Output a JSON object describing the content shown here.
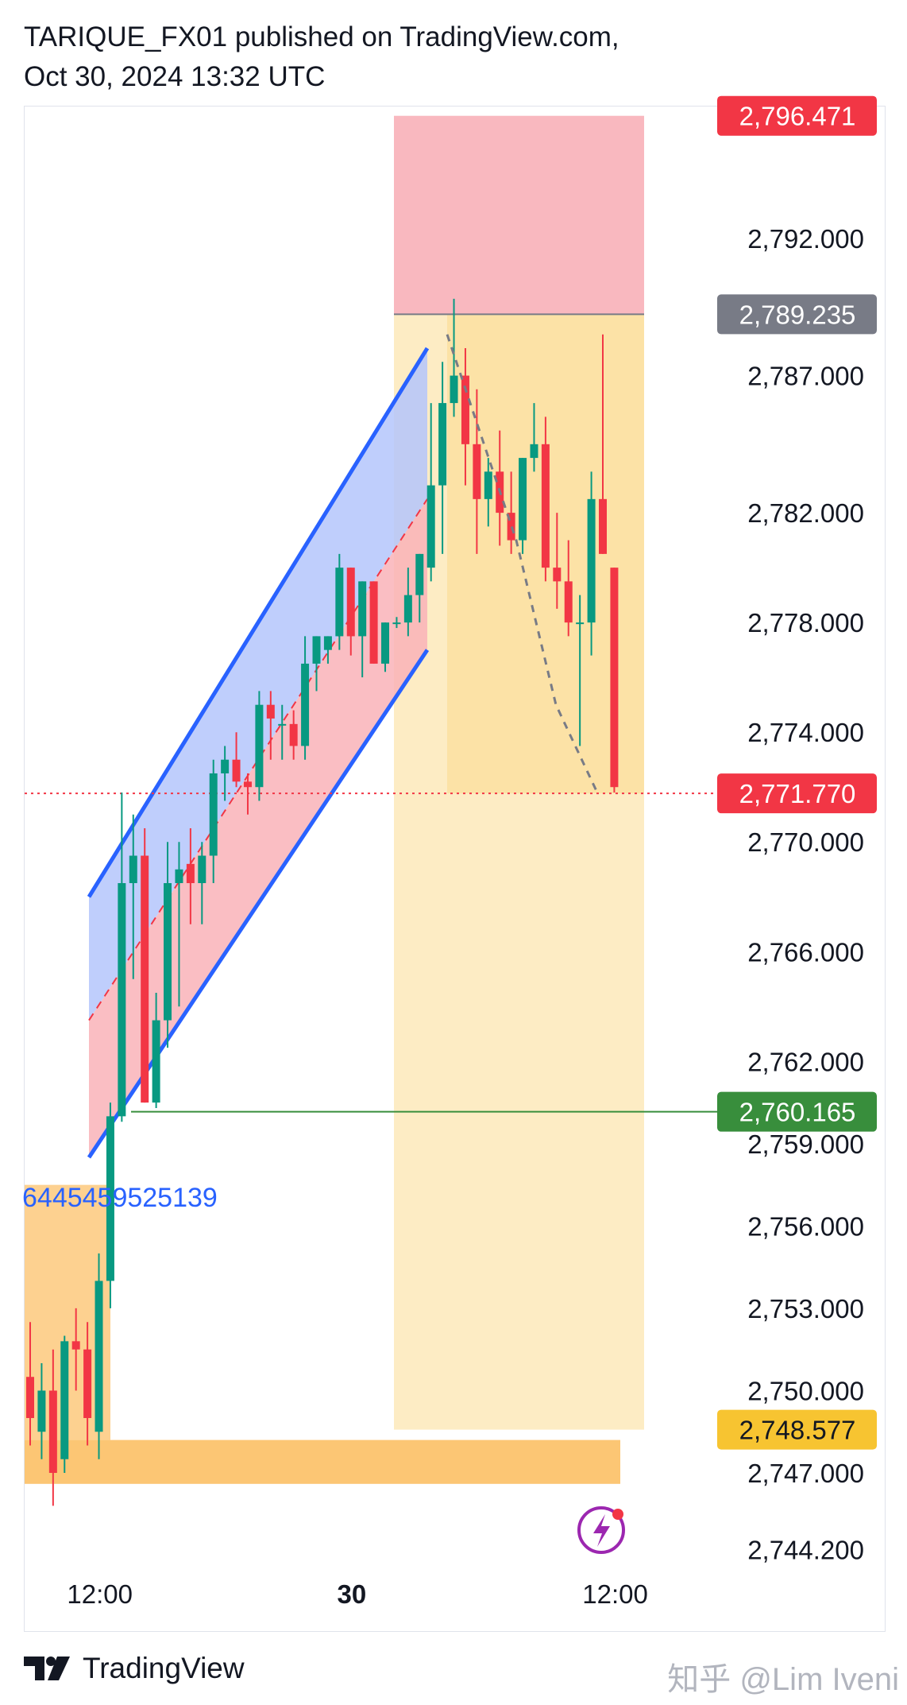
{
  "header": {
    "line1": "TARIQUE_FX01 published on TradingView.com,",
    "line2": "Oct 30, 2024 13:32 UTC"
  },
  "footer": {
    "brand": "TradingView",
    "watermark": "知乎 @Lim Iveni"
  },
  "colors": {
    "bull": "#089981",
    "bear": "#f23645",
    "channel_blue": "#2962ff",
    "channel_fill_blue": "#b4c6fc",
    "channel_fill_red": "#f9b3b8",
    "stop_zone": "#f9b8bf",
    "profit_zone": "#fdecc4",
    "profit_zone_dark": "#fce2a6",
    "orange_zone": "#fcc674",
    "green_line": "#388e3c",
    "gray_line": "#787b86"
  },
  "chart_data": {
    "type": "candlestick",
    "symbol_note": "XAUUSD-style price chart",
    "y_axis": {
      "range": [
        2744.2,
        2797.5
      ],
      "ticks": [
        "2,792.000",
        "2,787.000",
        "2,782.000",
        "2,778.000",
        "2,774.000",
        "2,770.000",
        "2,766.000",
        "2,762.000",
        "2,759.000",
        "2,756.000",
        "2,753.000",
        "2,750.000",
        "2,747.000",
        "2,744.200"
      ],
      "tick_values": [
        2792.0,
        2787.0,
        2782.0,
        2778.0,
        2774.0,
        2770.0,
        2766.0,
        2762.0,
        2759.0,
        2756.0,
        2753.0,
        2750.0,
        2747.0,
        2744.2
      ]
    },
    "x_axis": {
      "ticks": [
        "12:00",
        "30",
        "12:00"
      ],
      "tick_bars": [
        4,
        26,
        49
      ],
      "bold_tick": "30"
    },
    "price_labels": [
      {
        "text": "2,796.471",
        "value": 2796.471,
        "color": "#f23645"
      },
      {
        "text": "2,789.235",
        "value": 2789.235,
        "color": "#787b86"
      },
      {
        "text": "2,771.770",
        "value": 2771.77,
        "color": "#f23645"
      },
      {
        "text": "2,760.165",
        "value": 2760.165,
        "color": "#388e3c"
      },
      {
        "text": "2,748.577",
        "value": 2748.577,
        "color": "#f7c431"
      }
    ],
    "annotations": {
      "blue_text": "6445459525139"
    },
    "candles": [
      {
        "o": 2750.5,
        "h": 2752.5,
        "l": 2748.0,
        "c": 2749.0
      },
      {
        "o": 2748.5,
        "h": 2751.0,
        "l": 2747.5,
        "c": 2750.0
      },
      {
        "o": 2750.0,
        "h": 2751.5,
        "l": 2745.8,
        "c": 2747.0
      },
      {
        "o": 2747.5,
        "h": 2752.0,
        "l": 2747.0,
        "c": 2751.8
      },
      {
        "o": 2751.8,
        "h": 2753.0,
        "l": 2750.0,
        "c": 2751.5
      },
      {
        "o": 2751.5,
        "h": 2752.5,
        "l": 2748.0,
        "c": 2749.0
      },
      {
        "o": 2748.5,
        "h": 2755.0,
        "l": 2747.5,
        "c": 2754.0
      },
      {
        "o": 2754.0,
        "h": 2760.5,
        "l": 2753.0,
        "c": 2760.0
      },
      {
        "o": 2760.0,
        "h": 2771.8,
        "l": 2759.8,
        "c": 2768.5
      },
      {
        "o": 2768.5,
        "h": 2771.0,
        "l": 2765.0,
        "c": 2769.5
      },
      {
        "o": 2769.5,
        "h": 2770.5,
        "l": 2760.5,
        "c": 2760.5
      },
      {
        "o": 2760.5,
        "h": 2764.5,
        "l": 2760.3,
        "c": 2763.5
      },
      {
        "o": 2763.5,
        "h": 2770.0,
        "l": 2762.5,
        "c": 2768.5
      },
      {
        "o": 2768.5,
        "h": 2770.0,
        "l": 2764.0,
        "c": 2769.0
      },
      {
        "o": 2769.2,
        "h": 2770.5,
        "l": 2767.0,
        "c": 2768.5
      },
      {
        "o": 2768.5,
        "h": 2770.0,
        "l": 2767.0,
        "c": 2769.5
      },
      {
        "o": 2769.5,
        "h": 2773.0,
        "l": 2768.5,
        "c": 2772.5
      },
      {
        "o": 2772.5,
        "h": 2773.5,
        "l": 2771.5,
        "c": 2773.0
      },
      {
        "o": 2773.0,
        "h": 2774.0,
        "l": 2772.0,
        "c": 2772.2
      },
      {
        "o": 2772.2,
        "h": 2772.5,
        "l": 2771.0,
        "c": 2772.0
      },
      {
        "o": 2772.0,
        "h": 2775.5,
        "l": 2771.5,
        "c": 2775.0
      },
      {
        "o": 2775.0,
        "h": 2775.5,
        "l": 2773.0,
        "c": 2774.5
      },
      {
        "o": 2774.3,
        "h": 2775.0,
        "l": 2773.0,
        "c": 2774.3
      },
      {
        "o": 2774.3,
        "h": 2774.8,
        "l": 2773.0,
        "c": 2773.5
      },
      {
        "o": 2773.5,
        "h": 2777.5,
        "l": 2773.0,
        "c": 2776.5
      },
      {
        "o": 2776.5,
        "h": 2777.5,
        "l": 2775.5,
        "c": 2777.5
      },
      {
        "o": 2777.0,
        "h": 2777.5,
        "l": 2776.5,
        "c": 2777.5
      },
      {
        "o": 2777.5,
        "h": 2780.5,
        "l": 2777.0,
        "c": 2780.0
      },
      {
        "o": 2780.0,
        "h": 2780.0,
        "l": 2776.8,
        "c": 2777.5
      },
      {
        "o": 2777.5,
        "h": 2779.5,
        "l": 2776.0,
        "c": 2779.5
      },
      {
        "o": 2779.5,
        "h": 2779.5,
        "l": 2776.5,
        "c": 2776.5
      },
      {
        "o": 2776.5,
        "h": 2778.0,
        "l": 2776.2,
        "c": 2778.0
      },
      {
        "o": 2778.0,
        "h": 2778.2,
        "l": 2777.8,
        "c": 2778.0
      },
      {
        "o": 2778.0,
        "h": 2780.0,
        "l": 2777.5,
        "c": 2779.0
      },
      {
        "o": 2779.0,
        "h": 2780.5,
        "l": 2778.0,
        "c": 2780.5
      },
      {
        "o": 2780.0,
        "h": 2786.0,
        "l": 2779.5,
        "c": 2783.0
      },
      {
        "o": 2783.0,
        "h": 2787.5,
        "l": 2780.5,
        "c": 2786.0
      },
      {
        "o": 2786.0,
        "h": 2789.8,
        "l": 2785.5,
        "c": 2787.0
      },
      {
        "o": 2787.0,
        "h": 2788.0,
        "l": 2783.0,
        "c": 2784.5
      },
      {
        "o": 2784.5,
        "h": 2786.5,
        "l": 2780.5,
        "c": 2782.5
      },
      {
        "o": 2782.5,
        "h": 2784.0,
        "l": 2781.5,
        "c": 2783.5
      },
      {
        "o": 2783.5,
        "h": 2785.0,
        "l": 2780.8,
        "c": 2782.0
      },
      {
        "o": 2782.0,
        "h": 2783.5,
        "l": 2780.5,
        "c": 2781.0
      },
      {
        "o": 2781.0,
        "h": 2784.0,
        "l": 2780.5,
        "c": 2784.0
      },
      {
        "o": 2784.0,
        "h": 2786.0,
        "l": 2783.5,
        "c": 2784.5
      },
      {
        "o": 2784.5,
        "h": 2785.5,
        "l": 2779.5,
        "c": 2780.0
      },
      {
        "o": 2780.0,
        "h": 2782.0,
        "l": 2778.5,
        "c": 2779.5
      },
      {
        "o": 2779.5,
        "h": 2781.0,
        "l": 2777.5,
        "c": 2778.0
      },
      {
        "o": 2778.0,
        "h": 2779.0,
        "l": 2773.5,
        "c": 2778.0
      },
      {
        "o": 2778.0,
        "h": 2783.5,
        "l": 2776.8,
        "c": 2782.5
      },
      {
        "o": 2782.5,
        "h": 2788.5,
        "l": 2780.5,
        "c": 2780.5
      },
      {
        "o": 2780.0,
        "h": 2780.0,
        "l": 2771.8,
        "c": 2772.0
      }
    ]
  }
}
